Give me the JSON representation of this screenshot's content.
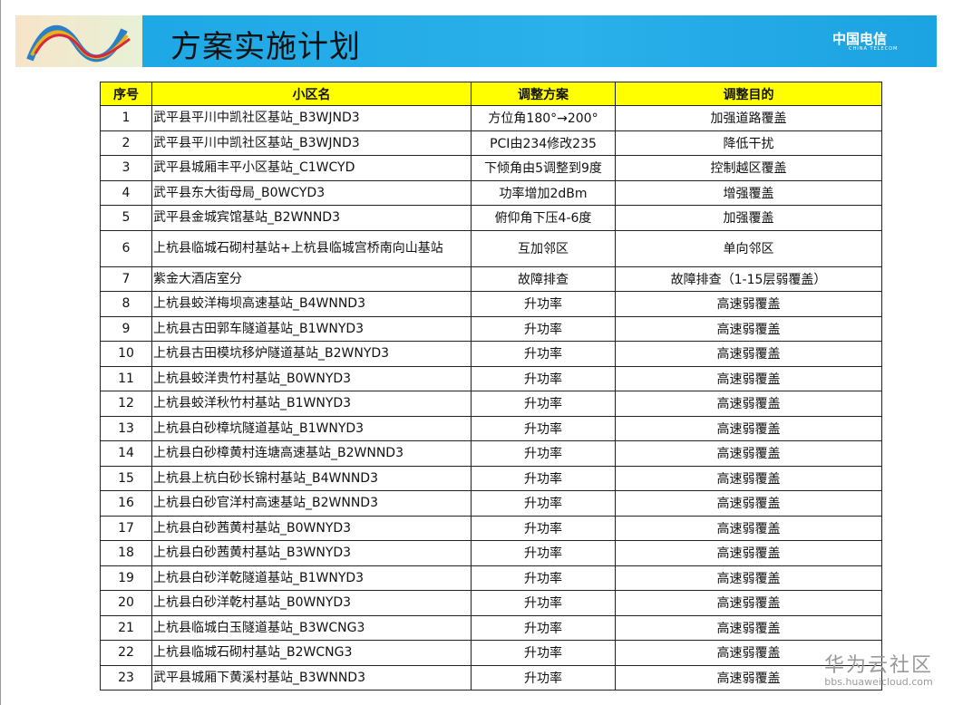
{
  "header": {
    "title": "方案实施计划",
    "brand": "中国电信",
    "brand_sub": "CHINA TELECOM"
  },
  "table": {
    "columns": [
      "序号",
      "小区名",
      "调整方案",
      "调整目的"
    ],
    "rows": [
      [
        "1",
        "武平县平川中凯社区基站_B3WJND3",
        "方位角180°→200°",
        "加强道路覆盖"
      ],
      [
        "2",
        "武平县平川中凯社区基站_B3WJND3",
        "PCI由234修改235",
        "降低干扰"
      ],
      [
        "3",
        "武平县城厢丰平小区基站_C1WCYD",
        "下倾角由5调整到9度",
        "控制越区覆盖"
      ],
      [
        "4",
        "武平县东大街母局_B0WCYD3",
        "功率增加2dBm",
        "增强覆盖"
      ],
      [
        "5",
        "武平县金城宾馆基站_B2WNND3",
        "俯仰角下压4-6度",
        "加强覆盖"
      ],
      [
        "6",
        "上杭县临城石砌村基站+上杭县临城宫桥南向山基站",
        "互加邻区",
        "单向邻区"
      ],
      [
        "7",
        "紫金大酒店室分",
        "故障排查",
        "故障排查（1-15层弱覆盖）"
      ],
      [
        "8",
        "上杭县蛟洋梅坝高速基站_B4WNND3",
        "升功率",
        "高速弱覆盖"
      ],
      [
        "9",
        "上杭县古田郭车隧道基站_B1WNYD3",
        "升功率",
        "高速弱覆盖"
      ],
      [
        "10",
        "上杭县古田模坑移炉隧道基站_B2WNYD3",
        "升功率",
        "高速弱覆盖"
      ],
      [
        "11",
        "上杭县蛟洋贵竹村基站_B0WNYD3",
        "升功率",
        "高速弱覆盖"
      ],
      [
        "12",
        "上杭县蛟洋秋竹村基站_B1WNYD3",
        "升功率",
        "高速弱覆盖"
      ],
      [
        "13",
        "上杭县白砂樟坑隧道基站_B1WNYD3",
        "升功率",
        "高速弱覆盖"
      ],
      [
        "14",
        "上杭县白砂樟黄村连塘高速基站_B2WNND3",
        "升功率",
        "高速弱覆盖"
      ],
      [
        "15",
        "上杭县上杭白砂长锦村基站_B4WNND3",
        "升功率",
        "高速弱覆盖"
      ],
      [
        "16",
        "上杭县白砂官洋村高速基站_B2WNND3",
        "升功率",
        "高速弱覆盖"
      ],
      [
        "17",
        "上杭县白砂茜黄村基站_B0WNYD3",
        "升功率",
        "高速弱覆盖"
      ],
      [
        "18",
        "上杭县白砂茜黄村基站_B3WNYD3",
        "升功率",
        "高速弱覆盖"
      ],
      [
        "19",
        "上杭县白砂洋乾隧道基站_B1WNYD3",
        "升功率",
        "高速弱覆盖"
      ],
      [
        "20",
        "上杭县白砂洋乾村基站_B0WNYD3",
        "升功率",
        "高速弱覆盖"
      ],
      [
        "21",
        "上杭县临城白玉隧道基站_B3WCNG3",
        "升功率",
        "高速弱覆盖"
      ],
      [
        "22",
        "上杭县临城石砌村基站_B2WCNG3",
        "升功率",
        "高速弱覆盖"
      ],
      [
        "23",
        "武平县城厢下黄溪村基站_B3WNND3",
        "升功率",
        "高速弱覆盖"
      ]
    ]
  },
  "watermark": {
    "name": "华为云社区",
    "url": "bbs.huaweicloud.com"
  },
  "colors": {
    "banner": "#1aa6e4",
    "header_fill": "#ffff00"
  }
}
